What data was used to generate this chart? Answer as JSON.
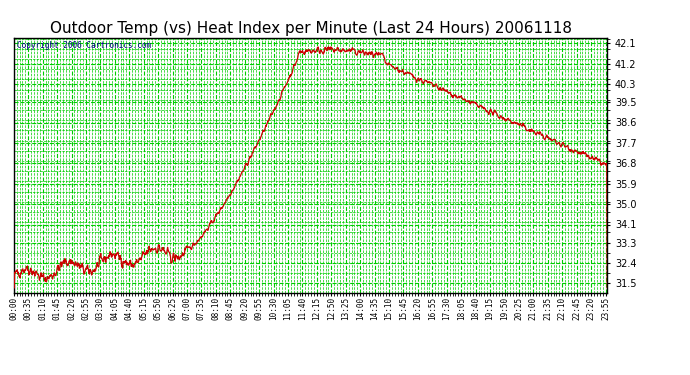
{
  "title": "Outdoor Temp (vs) Heat Index per Minute (Last 24 Hours) 20061118",
  "copyright": "Copyright 2006 Cartronics.com",
  "background_color": "#ffffff",
  "plot_bg_color": "#ffffff",
  "grid_color": "#00cc00",
  "line_color": "#cc0000",
  "title_fontsize": 11,
  "yticks": [
    31.5,
    32.4,
    33.3,
    34.1,
    35.0,
    35.9,
    36.8,
    37.7,
    38.6,
    39.5,
    40.3,
    41.2,
    42.1
  ],
  "ylim": [
    31.1,
    42.35
  ],
  "xtick_labels": [
    "00:00",
    "00:35",
    "01:10",
    "01:45",
    "02:20",
    "02:55",
    "03:30",
    "04:05",
    "04:40",
    "05:15",
    "05:50",
    "06:25",
    "07:00",
    "07:35",
    "08:10",
    "08:45",
    "09:20",
    "09:55",
    "10:30",
    "11:05",
    "11:40",
    "12:15",
    "12:50",
    "13:25",
    "14:00",
    "14:35",
    "15:10",
    "15:45",
    "16:20",
    "16:55",
    "17:30",
    "18:05",
    "18:40",
    "19:15",
    "19:50",
    "20:25",
    "21:00",
    "21:35",
    "22:10",
    "22:45",
    "23:20",
    "23:55"
  ]
}
